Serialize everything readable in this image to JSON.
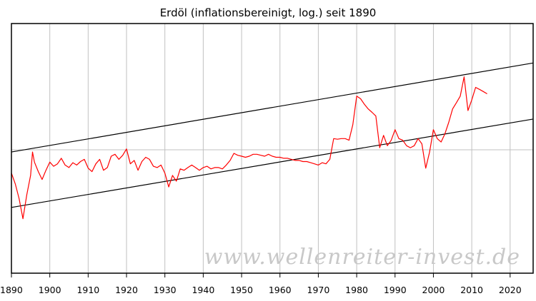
{
  "chart_data": {
    "type": "line",
    "title": "Erdöl (inflationsbereinigt, log.) seit 1890",
    "xlabel": "",
    "ylabel": "",
    "xlim": [
      1890,
      2026
    ],
    "x_ticks": [
      1890,
      1900,
      1910,
      1920,
      1930,
      1940,
      1950,
      1960,
      1970,
      1980,
      1990,
      2000,
      2010,
      2020
    ],
    "y_scale": "log",
    "y_tick_labels": false,
    "grid": true,
    "legend": "none",
    "watermark": "www.wellenreiter-invest.de",
    "series": [
      {
        "color": "#ff0000",
        "points": [
          [
            1890,
            0.58
          ],
          [
            1891,
            0.45
          ],
          [
            1892,
            0.32
          ],
          [
            1893,
            0.2
          ],
          [
            1894,
            0.35
          ],
          [
            1895,
            0.55
          ],
          [
            1895.5,
            0.95
          ],
          [
            1896,
            0.75
          ],
          [
            1897,
            0.6
          ],
          [
            1898,
            0.5
          ],
          [
            1899,
            0.62
          ],
          [
            1900,
            0.75
          ],
          [
            1901,
            0.68
          ],
          [
            1902,
            0.72
          ],
          [
            1903,
            0.82
          ],
          [
            1904,
            0.7
          ],
          [
            1905,
            0.66
          ],
          [
            1906,
            0.74
          ],
          [
            1907,
            0.7
          ],
          [
            1908,
            0.76
          ],
          [
            1909,
            0.8
          ],
          [
            1910,
            0.65
          ],
          [
            1911,
            0.6
          ],
          [
            1912,
            0.72
          ],
          [
            1913,
            0.8
          ],
          [
            1914,
            0.62
          ],
          [
            1915,
            0.66
          ],
          [
            1916,
            0.86
          ],
          [
            1917,
            0.9
          ],
          [
            1918,
            0.8
          ],
          [
            1919,
            0.88
          ],
          [
            1920,
            1.02
          ],
          [
            1921,
            0.72
          ],
          [
            1922,
            0.78
          ],
          [
            1923,
            0.62
          ],
          [
            1924,
            0.76
          ],
          [
            1925,
            0.84
          ],
          [
            1926,
            0.8
          ],
          [
            1927,
            0.68
          ],
          [
            1928,
            0.66
          ],
          [
            1929,
            0.7
          ],
          [
            1930,
            0.58
          ],
          [
            1931,
            0.42
          ],
          [
            1932,
            0.55
          ],
          [
            1933,
            0.48
          ],
          [
            1934,
            0.64
          ],
          [
            1935,
            0.62
          ],
          [
            1936,
            0.66
          ],
          [
            1937,
            0.7
          ],
          [
            1938,
            0.66
          ],
          [
            1939,
            0.62
          ],
          [
            1940,
            0.66
          ],
          [
            1941,
            0.68
          ],
          [
            1942,
            0.64
          ],
          [
            1943,
            0.66
          ],
          [
            1944,
            0.66
          ],
          [
            1945,
            0.64
          ],
          [
            1946,
            0.7
          ],
          [
            1947,
            0.78
          ],
          [
            1948,
            0.92
          ],
          [
            1949,
            0.88
          ],
          [
            1950,
            0.86
          ],
          [
            1951,
            0.84
          ],
          [
            1952,
            0.86
          ],
          [
            1953,
            0.9
          ],
          [
            1954,
            0.9
          ],
          [
            1955,
            0.88
          ],
          [
            1956,
            0.86
          ],
          [
            1957,
            0.9
          ],
          [
            1958,
            0.86
          ],
          [
            1959,
            0.84
          ],
          [
            1960,
            0.84
          ],
          [
            1961,
            0.82
          ],
          [
            1962,
            0.82
          ],
          [
            1963,
            0.8
          ],
          [
            1964,
            0.78
          ],
          [
            1965,
            0.78
          ],
          [
            1966,
            0.76
          ],
          [
            1967,
            0.76
          ],
          [
            1968,
            0.74
          ],
          [
            1969,
            0.72
          ],
          [
            1970,
            0.7
          ],
          [
            1971,
            0.74
          ],
          [
            1972,
            0.72
          ],
          [
            1973,
            0.8
          ],
          [
            1974,
            1.3
          ],
          [
            1975,
            1.28
          ],
          [
            1976,
            1.3
          ],
          [
            1977,
            1.3
          ],
          [
            1978,
            1.25
          ],
          [
            1979,
            1.8
          ],
          [
            1980,
            3.5
          ],
          [
            1981,
            3.3
          ],
          [
            1982,
            2.9
          ],
          [
            1983,
            2.6
          ],
          [
            1984,
            2.4
          ],
          [
            1985,
            2.2
          ],
          [
            1986,
            1.05
          ],
          [
            1987,
            1.4
          ],
          [
            1988,
            1.1
          ],
          [
            1989,
            1.25
          ],
          [
            1990,
            1.6
          ],
          [
            1991,
            1.3
          ],
          [
            1992,
            1.25
          ],
          [
            1993,
            1.1
          ],
          [
            1994,
            1.05
          ],
          [
            1995,
            1.1
          ],
          [
            1996,
            1.3
          ],
          [
            1997,
            1.15
          ],
          [
            1998,
            0.65
          ],
          [
            1999,
            0.95
          ],
          [
            2000,
            1.6
          ],
          [
            2001,
            1.3
          ],
          [
            2002,
            1.2
          ],
          [
            2003,
            1.45
          ],
          [
            2004,
            1.9
          ],
          [
            2005,
            2.6
          ],
          [
            2006,
            3.0
          ],
          [
            2007,
            3.5
          ],
          [
            2008,
            5.5
          ],
          [
            2009,
            2.5
          ],
          [
            2010,
            3.2
          ],
          [
            2011,
            4.3
          ],
          [
            2012,
            4.1
          ],
          [
            2013,
            3.9
          ],
          [
            2014,
            3.7
          ]
        ]
      }
    ],
    "trend_lines": [
      {
        "color": "#000000",
        "from": [
          1890,
          0.95
        ],
        "to": [
          2026,
          7.6
        ]
      },
      {
        "color": "#000000",
        "from": [
          1890,
          0.26
        ],
        "to": [
          2026,
          2.05
        ]
      }
    ]
  }
}
